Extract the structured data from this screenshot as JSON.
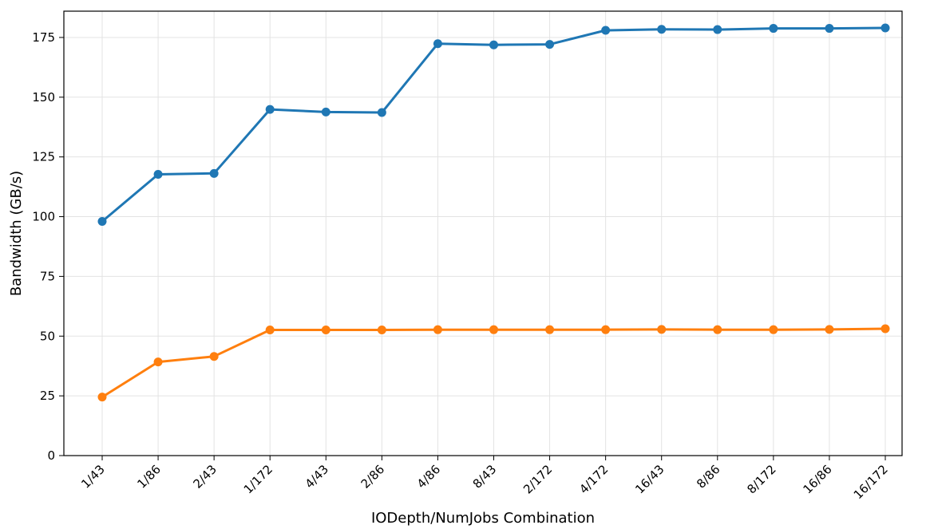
{
  "chart_data": {
    "type": "line",
    "title": "",
    "xlabel": "IODepth/NumJobs Combination",
    "ylabel": "Bandwidth (GB/s)",
    "categories": [
      "1/43",
      "1/86",
      "2/43",
      "1/172",
      "4/43",
      "2/86",
      "4/86",
      "8/43",
      "2/172",
      "4/172",
      "16/43",
      "8/86",
      "8/172",
      "16/86",
      "16/172"
    ],
    "ylim": [
      0,
      186
    ],
    "yticks": [
      0,
      25,
      50,
      75,
      100,
      125,
      150,
      175
    ],
    "grid": true,
    "series": [
      {
        "color": "#1f77b4",
        "values": [
          98,
          117.7,
          118.1,
          144.9,
          143.8,
          143.6,
          172.4,
          171.9,
          172.1,
          178.0,
          178.4,
          178.3,
          178.8,
          178.8,
          179.0
        ]
      },
      {
        "color": "#ff7f0e",
        "values": [
          24.5,
          39.2,
          41.5,
          52.6,
          52.6,
          52.6,
          52.7,
          52.7,
          52.7,
          52.7,
          52.8,
          52.7,
          52.7,
          52.8,
          53.1
        ]
      }
    ]
  }
}
